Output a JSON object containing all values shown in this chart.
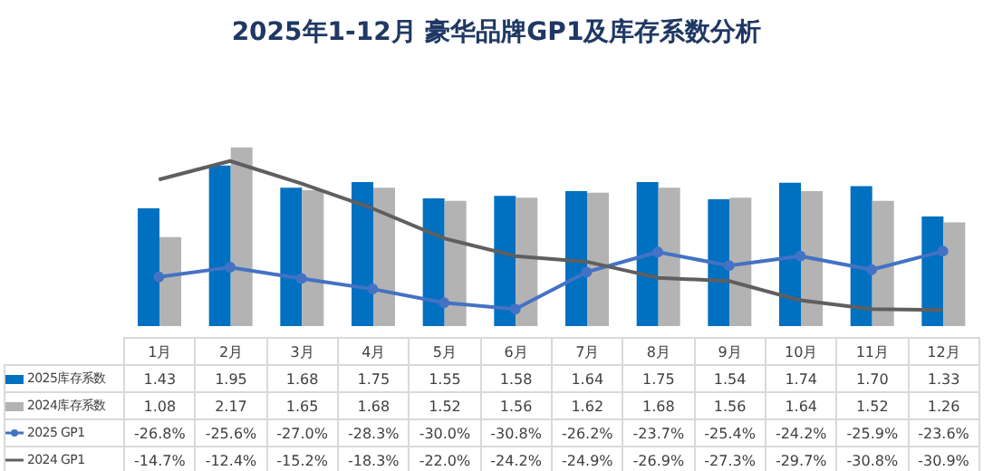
{
  "chart_data": {
    "type": "bar",
    "title": "2025年1-12月 豪华品牌GP1及库存系数分析",
    "categories": [
      "1月",
      "2月",
      "3月",
      "4月",
      "5月",
      "6月",
      "7月",
      "8月",
      "9月",
      "10月",
      "11月",
      "12月"
    ],
    "series": [
      {
        "name": "2025库存系数",
        "color": "#0070c0",
        "values": [
          1.43,
          1.95,
          1.68,
          1.75,
          1.55,
          1.58,
          1.64,
          1.75,
          1.54,
          1.74,
          1.7,
          1.33
        ],
        "value_labels": [
          "1.43",
          "1.95",
          "1.68",
          "1.75",
          "1.55",
          "1.58",
          "1.64",
          "1.75",
          "1.54",
          "1.74",
          "1.70",
          "1.33"
        ]
      },
      {
        "name": "2024库存系数",
        "color": "#b3b3b3",
        "values": [
          1.08,
          2.17,
          1.65,
          1.68,
          1.52,
          1.56,
          1.62,
          1.68,
          1.56,
          1.64,
          1.52,
          1.26
        ],
        "value_labels": [
          "1.08",
          "2.17",
          "1.65",
          "1.68",
          "1.52",
          "1.56",
          "1.62",
          "1.68",
          "1.56",
          "1.64",
          "1.52",
          "1.26"
        ]
      },
      {
        "name": "2025 GP1",
        "type": "line",
        "axis": "y2",
        "marker": "circle",
        "color": "#4472c4",
        "values": [
          -26.8,
          -25.6,
          -27.0,
          -28.3,
          -30.0,
          -30.8,
          -26.2,
          -23.7,
          -25.4,
          -24.2,
          -25.9,
          -23.6
        ],
        "value_labels": [
          "-26.8%",
          "-25.6%",
          "-27.0%",
          "-28.3%",
          "-30.0%",
          "-30.8%",
          "-26.2%",
          "-23.7%",
          "-25.4%",
          "-24.2%",
          "-25.9%",
          "-23.6%"
        ]
      },
      {
        "name": "2024 GP1",
        "type": "line",
        "axis": "y2",
        "marker": "none",
        "color": "#5f5f5f",
        "values": [
          -14.7,
          -12.4,
          -15.2,
          -18.3,
          -22.0,
          -24.2,
          -24.9,
          -26.9,
          -27.3,
          -29.7,
          -30.8,
          -30.9
        ],
        "value_labels": [
          "-14.7%",
          "-12.4%",
          "-15.2%",
          "-18.3%",
          "-22.0%",
          "-24.2%",
          "-24.9%",
          "-26.9%",
          "-27.3%",
          "-29.7%",
          "-30.8%",
          "-30.9%"
        ]
      }
    ],
    "grid": false,
    "legend": "bottom"
  }
}
